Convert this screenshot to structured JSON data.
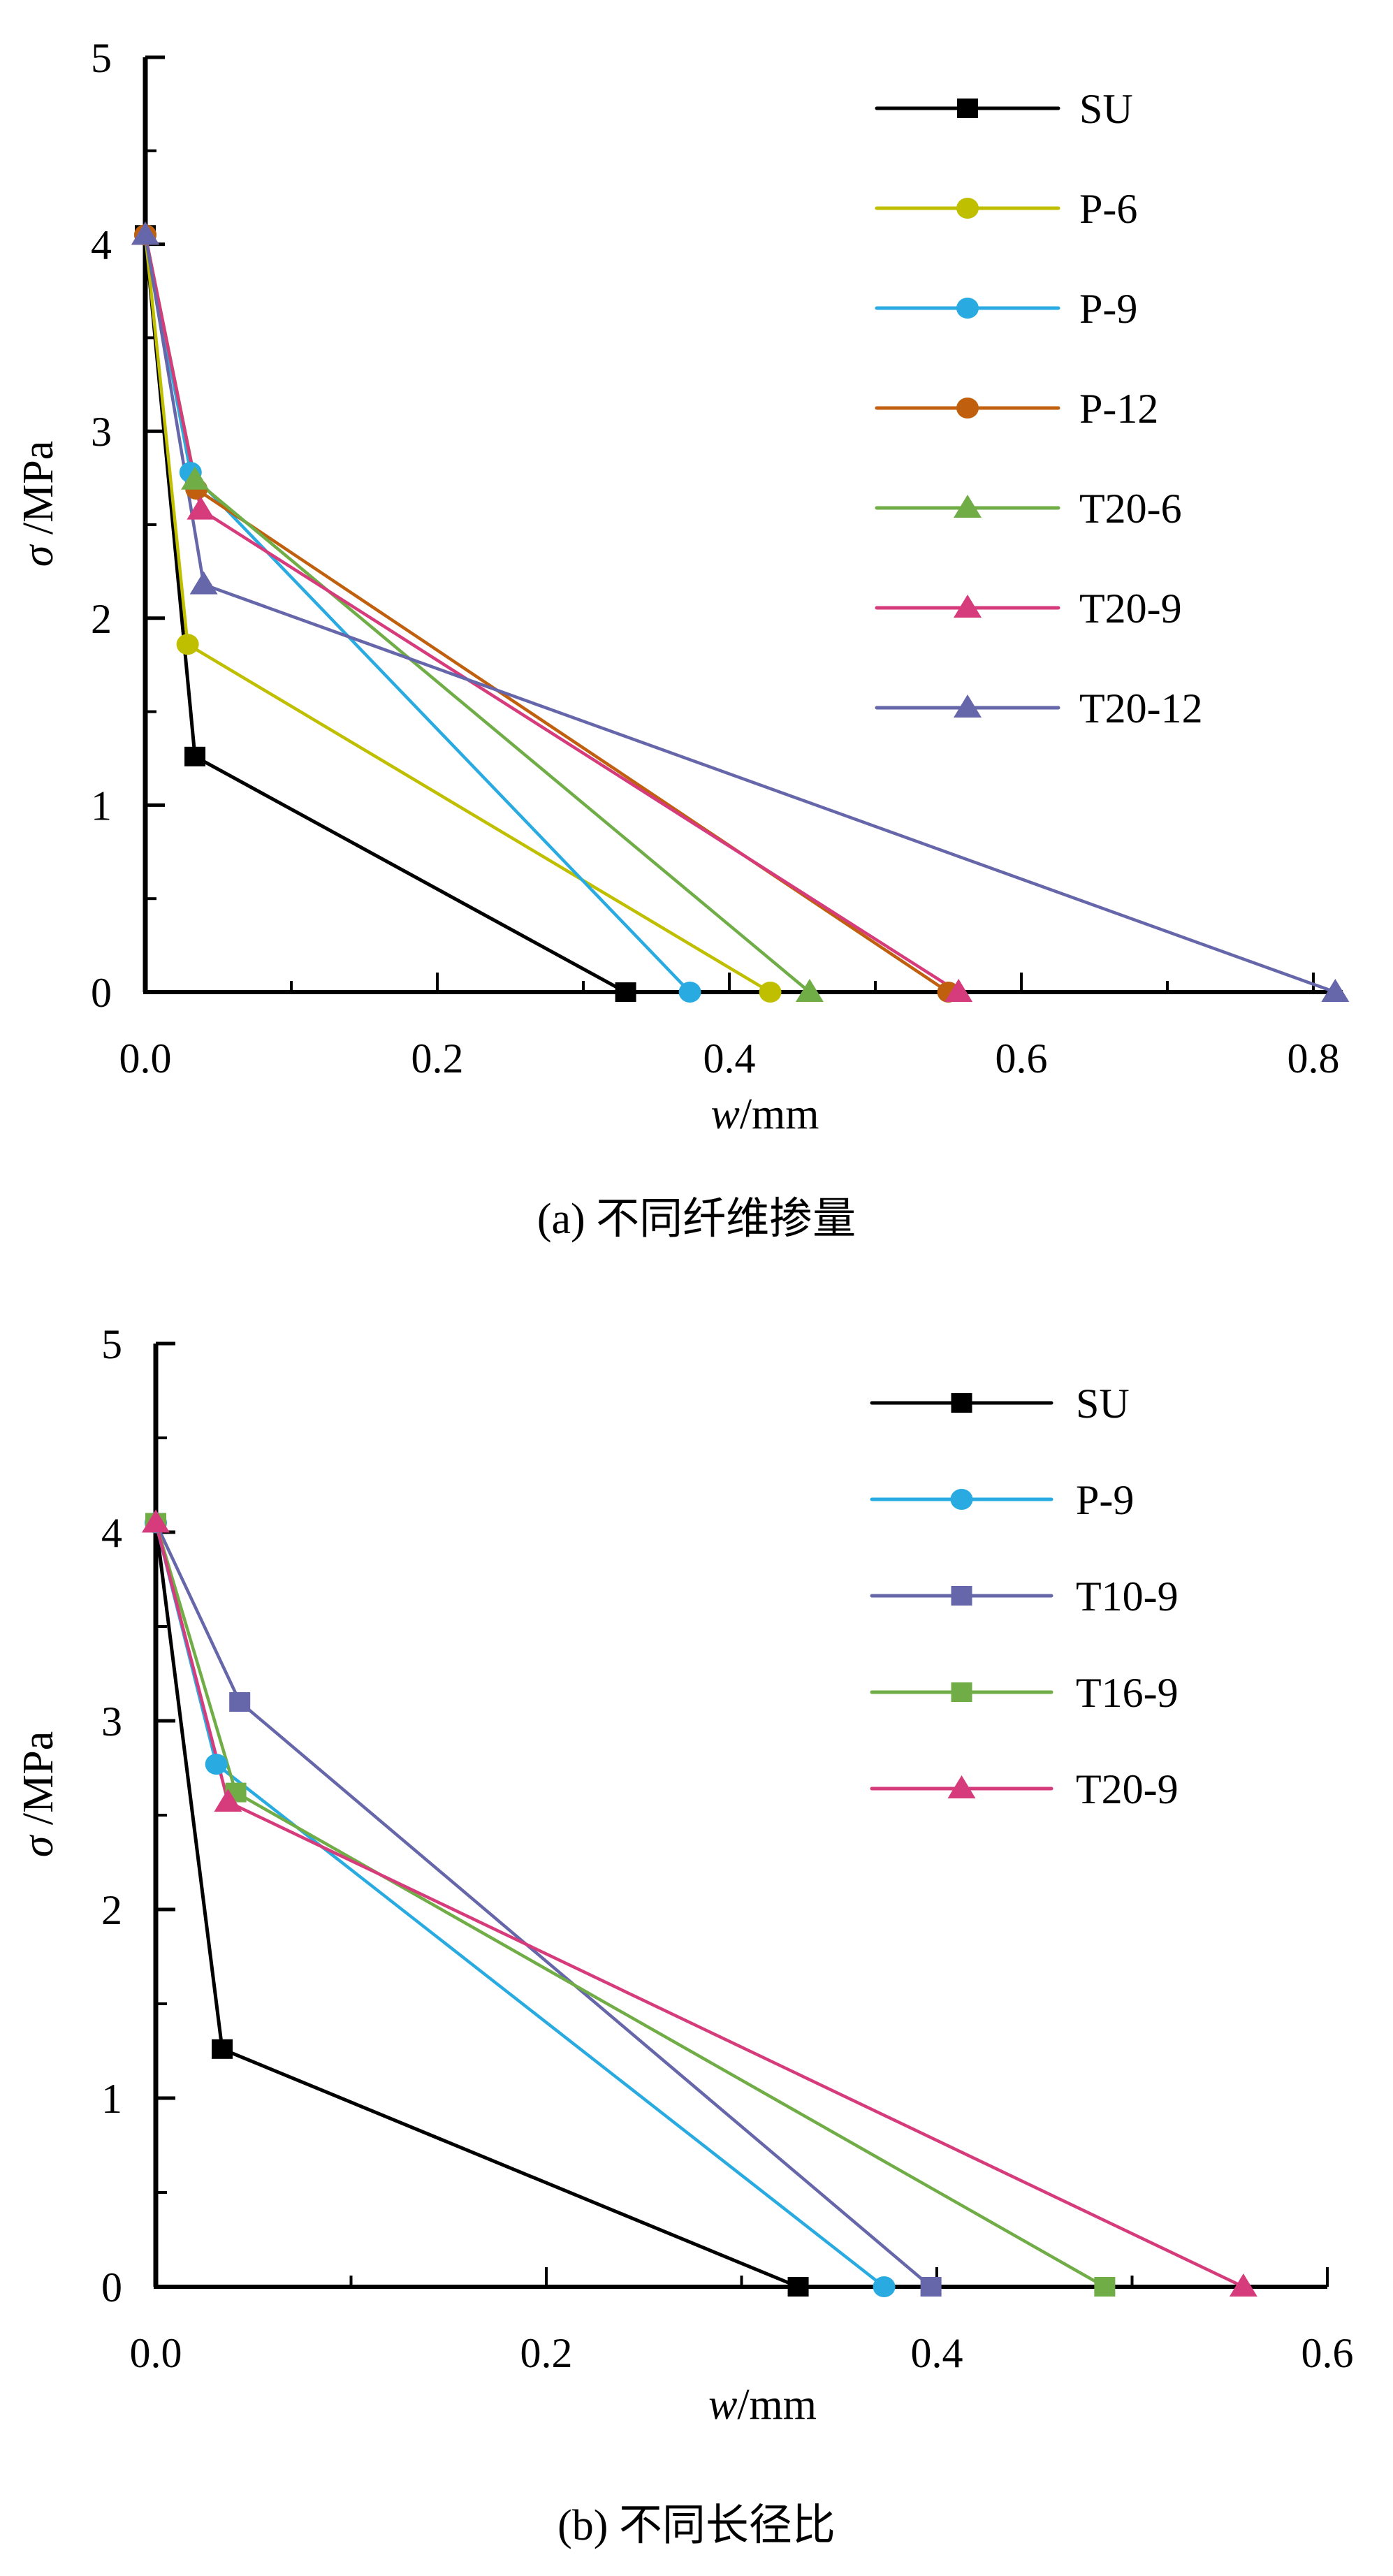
{
  "chart_data": [
    {
      "type": "line",
      "caption": "(a) 不同纤维掺量",
      "xlabel_var": "w",
      "xlabel_unit": "/mm",
      "ylabel_var": "σ",
      "ylabel_unit": " /MPa",
      "xlim": [
        0,
        0.82
      ],
      "ylim": [
        0,
        5
      ],
      "xticks": [
        0.0,
        0.2,
        0.4,
        0.6,
        0.8
      ],
      "xtick_labels": [
        "0.0",
        "0.2",
        "0.4",
        "0.6",
        "0.8"
      ],
      "xminor": [
        0.1,
        0.3,
        0.5,
        0.7
      ],
      "yticks": [
        0,
        1,
        2,
        3,
        4,
        5
      ],
      "ytick_labels": [
        "0",
        "1",
        "2",
        "3",
        "4",
        "5"
      ],
      "yminor": [
        0.5,
        1.5,
        2.5,
        3.5,
        4.5
      ],
      "grid": false,
      "legend_position": "top-right",
      "series": [
        {
          "name": "SU",
          "color": "#000000",
          "marker": "square",
          "x": [
            0.0,
            0.034,
            0.329
          ],
          "y": [
            4.05,
            1.26,
            0.0
          ]
        },
        {
          "name": "P-6",
          "color": "#bfbf00",
          "marker": "circle",
          "x": [
            0.0,
            0.029,
            0.428
          ],
          "y": [
            4.05,
            1.86,
            0.0
          ]
        },
        {
          "name": "P-9",
          "color": "#29abe2",
          "marker": "circle",
          "x": [
            0.0,
            0.031,
            0.373
          ],
          "y": [
            4.05,
            2.78,
            0.0
          ]
        },
        {
          "name": "P-12",
          "color": "#c0600e",
          "marker": "circle",
          "x": [
            0.0,
            0.035,
            0.55
          ],
          "y": [
            4.05,
            2.69,
            0.0
          ]
        },
        {
          "name": "T20-6",
          "color": "#70ad47",
          "marker": "triangle",
          "x": [
            0.0,
            0.034,
            0.455
          ],
          "y": [
            4.05,
            2.74,
            0.0
          ]
        },
        {
          "name": "T20-9",
          "color": "#d63b7c",
          "marker": "triangle",
          "x": [
            0.0,
            0.038,
            0.557
          ],
          "y": [
            4.05,
            2.58,
            0.0
          ]
        },
        {
          "name": "T20-12",
          "color": "#6666aa",
          "marker": "triangle",
          "x": [
            0.0,
            0.04,
            0.815
          ],
          "y": [
            4.05,
            2.18,
            0.0
          ]
        }
      ]
    },
    {
      "type": "line",
      "caption": "(b) 不同长径比",
      "xlabel_var": "w",
      "xlabel_unit": "/mm",
      "ylabel_var": "σ",
      "ylabel_unit": " /MPa",
      "xlim": [
        0,
        0.6
      ],
      "ylim": [
        0,
        5
      ],
      "xticks": [
        0.0,
        0.2,
        0.4,
        0.6
      ],
      "xtick_labels": [
        "0.0",
        "0.2",
        "0.4",
        "0.6"
      ],
      "xminor": [
        0.1,
        0.3,
        0.5
      ],
      "yticks": [
        0,
        1,
        2,
        3,
        4,
        5
      ],
      "ytick_labels": [
        "0",
        "1",
        "2",
        "3",
        "4",
        "5"
      ],
      "yminor": [
        0.5,
        1.5,
        2.5,
        3.5,
        4.5
      ],
      "grid": false,
      "legend_position": "top-right",
      "series": [
        {
          "name": "SU",
          "color": "#000000",
          "marker": "square",
          "x": [
            0.0,
            0.034,
            0.329
          ],
          "y": [
            4.05,
            1.26,
            0.0
          ]
        },
        {
          "name": "P-9",
          "color": "#29abe2",
          "marker": "circle",
          "x": [
            0.0,
            0.031,
            0.373
          ],
          "y": [
            4.05,
            2.77,
            0.0
          ]
        },
        {
          "name": "T10-9",
          "color": "#6666aa",
          "marker": "square",
          "x": [
            0.0,
            0.043,
            0.397
          ],
          "y": [
            4.05,
            3.1,
            0.0
          ]
        },
        {
          "name": "T16-9",
          "color": "#70ad47",
          "marker": "square",
          "x": [
            0.0,
            0.041,
            0.486
          ],
          "y": [
            4.05,
            2.62,
            0.0
          ]
        },
        {
          "name": "T20-9",
          "color": "#d63b7c",
          "marker": "triangle",
          "x": [
            0.0,
            0.037,
            0.557
          ],
          "y": [
            4.05,
            2.57,
            0.0
          ]
        }
      ]
    }
  ]
}
